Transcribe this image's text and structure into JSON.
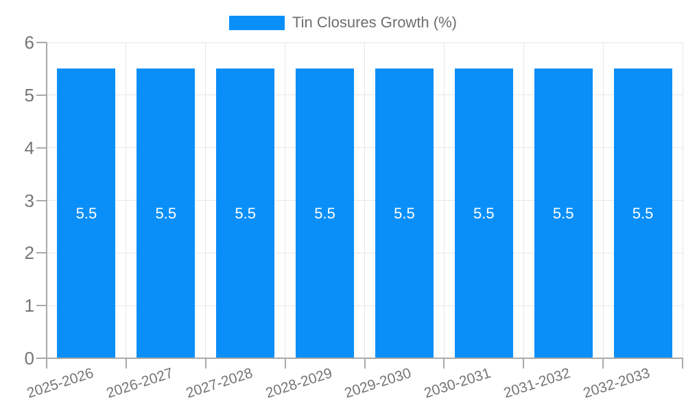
{
  "chart_data": {
    "type": "bar",
    "legend": "Tin Closures Growth (%)",
    "categories": [
      "2025-2026",
      "2026-2027",
      "2027-2028",
      "2028-2029",
      "2029-2030",
      "2030-2031",
      "2031-2032",
      "2032-2033"
    ],
    "values": [
      5.5,
      5.5,
      5.5,
      5.5,
      5.5,
      5.5,
      5.5,
      5.5
    ],
    "bar_value_labels": [
      "5.5",
      "5.5",
      "5.5",
      "5.5",
      "5.5",
      "5.5",
      "5.5",
      "5.5"
    ],
    "ylim": [
      0,
      6
    ],
    "yticks": [
      0,
      1,
      2,
      3,
      4,
      5,
      6
    ],
    "grid": "on",
    "legend_position": "top-center",
    "xlabel": "",
    "ylabel": "",
    "colors": {
      "bar": "#0a8ff9",
      "gridline": "#e6e6e6",
      "axis": "#a9a9a9",
      "tick_text": "#757575",
      "legend_text": "#6e6e6e",
      "bar_value_text": "#ffffff",
      "background": "#ffffff"
    }
  }
}
